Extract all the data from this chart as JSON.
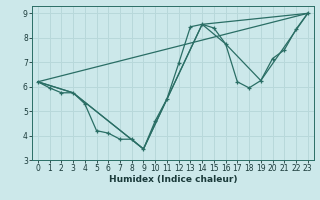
{
  "xlabel": "Humidex (Indice chaleur)",
  "bg_color": "#cce8ea",
  "grid_color": "#b8d8da",
  "line_color": "#2a6e65",
  "xlim": [
    -0.5,
    23.5
  ],
  "ylim": [
    3,
    9.3
  ],
  "yticks": [
    3,
    4,
    5,
    6,
    7,
    8,
    9
  ],
  "xticks": [
    0,
    1,
    2,
    3,
    4,
    5,
    6,
    7,
    8,
    9,
    10,
    11,
    12,
    13,
    14,
    15,
    16,
    17,
    18,
    19,
    20,
    21,
    22,
    23
  ],
  "tick_fontsize": 5.5,
  "xlabel_fontsize": 6.5,
  "line1_x": [
    0,
    1,
    2,
    3,
    4,
    5,
    6,
    7,
    8,
    9,
    10,
    11,
    12,
    13,
    14,
    15,
    16,
    17,
    18,
    19,
    20,
    21,
    22,
    23
  ],
  "line1_y": [
    6.2,
    5.95,
    5.75,
    5.75,
    5.3,
    4.2,
    4.1,
    3.85,
    3.85,
    3.45,
    4.6,
    5.5,
    6.95,
    8.45,
    8.55,
    8.4,
    7.75,
    6.2,
    5.95,
    6.25,
    7.15,
    7.5,
    8.35,
    9.0
  ],
  "line2_x": [
    0,
    3,
    9,
    14,
    23
  ],
  "line2_y": [
    6.2,
    5.75,
    3.45,
    8.55,
    9.0
  ],
  "line3_x": [
    0,
    3,
    9,
    14,
    16,
    19,
    23
  ],
  "line3_y": [
    6.2,
    5.75,
    3.45,
    8.55,
    7.75,
    6.25,
    9.0
  ],
  "line4_x": [
    0,
    23
  ],
  "line4_y": [
    6.2,
    9.0
  ]
}
